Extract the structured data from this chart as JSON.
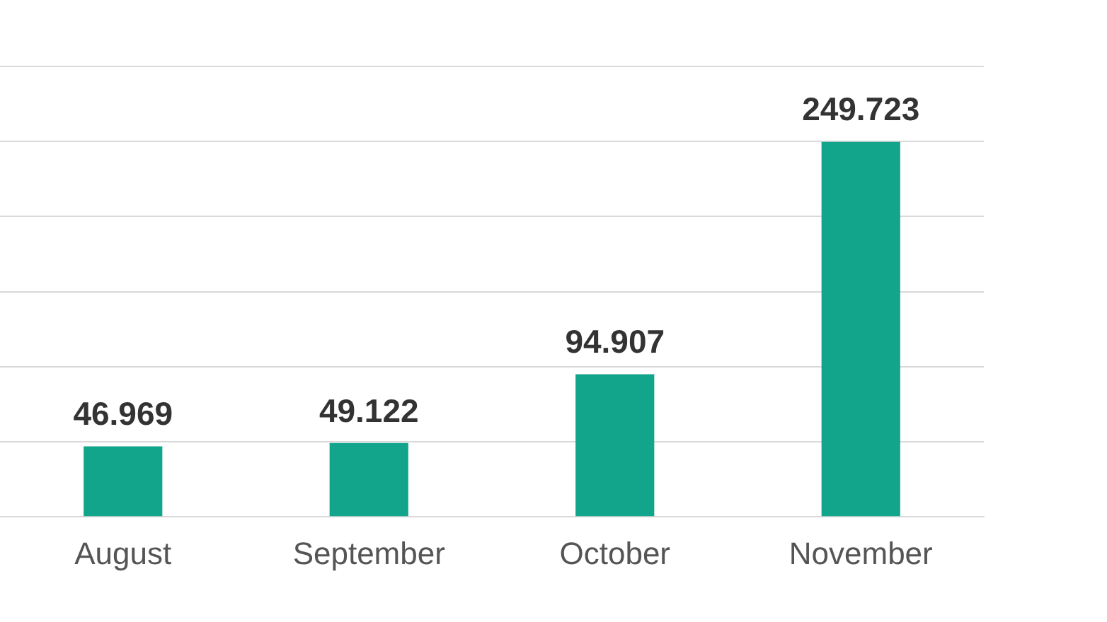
{
  "chart_data": {
    "type": "bar",
    "categories": [
      "August",
      "September",
      "October",
      "November"
    ],
    "values": [
      46.969,
      49.122,
      94.907,
      249.723
    ],
    "color": "#12a58b",
    "ylim": [
      0,
      300
    ],
    "yticks": [
      {
        "value": 0,
        "label": null
      },
      {
        "value": 50,
        "label": null
      },
      {
        "value": 100,
        "label": null
      },
      {
        "value": 150,
        "label": null
      },
      {
        "value": 200,
        "label": null
      },
      {
        "value": 250,
        "label": null
      },
      {
        "value": 300,
        "label": null
      }
    ],
    "grid": "y",
    "tick_labels": "x",
    "data_labels": true
  }
}
